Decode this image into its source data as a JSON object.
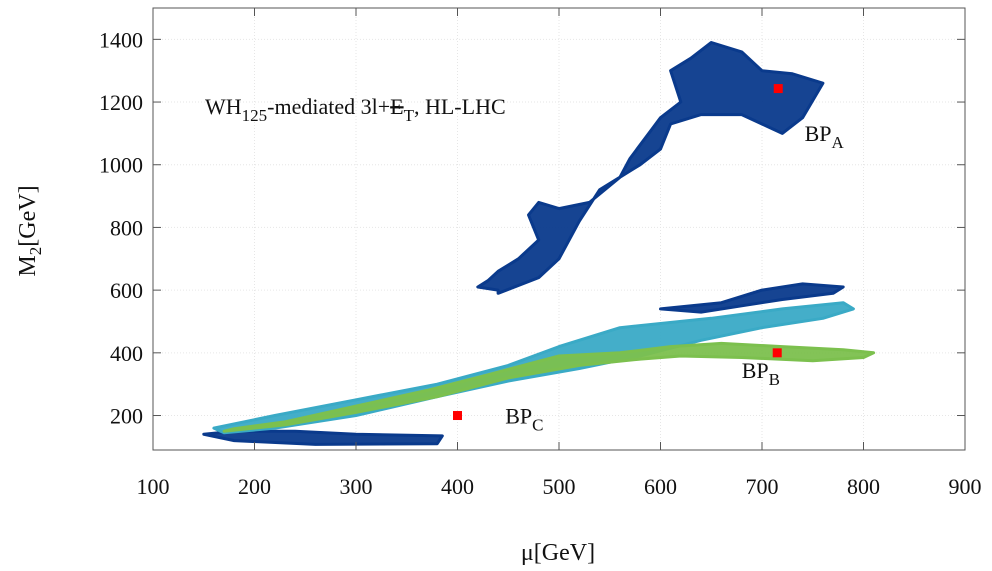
{
  "chart_data": {
    "type": "scatter",
    "title": "",
    "annotation": {
      "prefix": "WH",
      "sub": "125",
      "mid": "-mediated 3l+",
      "met_letter": "E",
      "met_sub": "T",
      "suffix": ", HL-LHC"
    },
    "xlabel": {
      "main": "μ[GeV]"
    },
    "ylabel": {
      "main": "M",
      "sub": "2",
      "rest": "[GeV]"
    },
    "xlim": [
      100,
      900
    ],
    "ylim": [
      90,
      1500
    ],
    "xticks": [
      100,
      200,
      300,
      400,
      500,
      600,
      700,
      800,
      900
    ],
    "yticks": [
      200,
      400,
      600,
      800,
      1000,
      1200,
      1400
    ],
    "grid": true,
    "colors": {
      "dark_blue": "#0a3a8c",
      "light_blue": "#3aaac6",
      "green": "#7cc04e",
      "bp_marker": "#ff0000"
    },
    "regions": [
      {
        "id": "dark-blue",
        "color": "#0a3a8c",
        "outline": [
          [
            150,
            140
          ],
          [
            180,
            120
          ],
          [
            260,
            108
          ],
          [
            380,
            110
          ],
          [
            385,
            135
          ],
          [
            300,
            140
          ],
          [
            240,
            150
          ],
          [
            180,
            150
          ]
        ]
      },
      {
        "id": "dark-blue-upper",
        "color": "#0a3a8c",
        "outline": [
          [
            440,
            590
          ],
          [
            480,
            640
          ],
          [
            500,
            700
          ],
          [
            520,
            820
          ],
          [
            540,
            920
          ],
          [
            580,
            1000
          ],
          [
            600,
            1050
          ],
          [
            610,
            1130
          ],
          [
            640,
            1160
          ],
          [
            680,
            1160
          ],
          [
            700,
            1130
          ],
          [
            720,
            1100
          ],
          [
            740,
            1150
          ],
          [
            760,
            1260
          ],
          [
            730,
            1290
          ],
          [
            700,
            1300
          ],
          [
            680,
            1360
          ],
          [
            650,
            1390
          ],
          [
            630,
            1340
          ],
          [
            610,
            1300
          ],
          [
            620,
            1200
          ],
          [
            600,
            1150
          ],
          [
            570,
            1020
          ],
          [
            560,
            960
          ],
          [
            530,
            880
          ],
          [
            500,
            860
          ],
          [
            480,
            880
          ],
          [
            470,
            840
          ],
          [
            480,
            760
          ],
          [
            460,
            700
          ],
          [
            440,
            660
          ],
          [
            430,
            630
          ],
          [
            420,
            610
          ],
          [
            440,
            600
          ]
        ]
      },
      {
        "id": "dark-blue-right",
        "color": "#0a3a8c",
        "outline": [
          [
            600,
            540
          ],
          [
            660,
            560
          ],
          [
            700,
            600
          ],
          [
            740,
            620
          ],
          [
            780,
            610
          ],
          [
            770,
            590
          ],
          [
            720,
            570
          ],
          [
            680,
            550
          ],
          [
            640,
            530
          ]
        ]
      },
      {
        "id": "light-blue",
        "color": "#3aaac6",
        "outline": [
          [
            160,
            160
          ],
          [
            220,
            200
          ],
          [
            300,
            250
          ],
          [
            380,
            300
          ],
          [
            450,
            360
          ],
          [
            500,
            420
          ],
          [
            560,
            480
          ],
          [
            650,
            510
          ],
          [
            720,
            540
          ],
          [
            780,
            560
          ],
          [
            790,
            540
          ],
          [
            760,
            510
          ],
          [
            700,
            480
          ],
          [
            640,
            440
          ],
          [
            580,
            390
          ],
          [
            520,
            350
          ],
          [
            450,
            310
          ],
          [
            380,
            260
          ],
          [
            300,
            200
          ],
          [
            220,
            160
          ],
          [
            170,
            145
          ]
        ]
      },
      {
        "id": "green",
        "color": "#7cc04e",
        "outline": [
          [
            170,
            150
          ],
          [
            230,
            170
          ],
          [
            300,
            210
          ],
          [
            380,
            260
          ],
          [
            450,
            320
          ],
          [
            520,
            360
          ],
          [
            580,
            380
          ],
          [
            620,
            390
          ],
          [
            680,
            385
          ],
          [
            750,
            375
          ],
          [
            800,
            385
          ],
          [
            810,
            400
          ],
          [
            780,
            410
          ],
          [
            720,
            420
          ],
          [
            660,
            430
          ],
          [
            610,
            420
          ],
          [
            560,
            400
          ],
          [
            500,
            390
          ],
          [
            430,
            330
          ],
          [
            370,
            280
          ],
          [
            300,
            230
          ],
          [
            230,
            180
          ],
          [
            180,
            158
          ]
        ]
      }
    ],
    "benchmarks": [
      {
        "label": "BP",
        "sub": "A",
        "x": 716,
        "y": 1243,
        "label_x": 742,
        "label_y": 1075
      },
      {
        "label": "BP",
        "sub": "B",
        "x": 715,
        "y": 400,
        "label_x": 680,
        "label_y": 320
      },
      {
        "label": "BP",
        "sub": "C",
        "x": 400,
        "y": 200,
        "label_x": 447,
        "label_y": 175
      }
    ]
  }
}
